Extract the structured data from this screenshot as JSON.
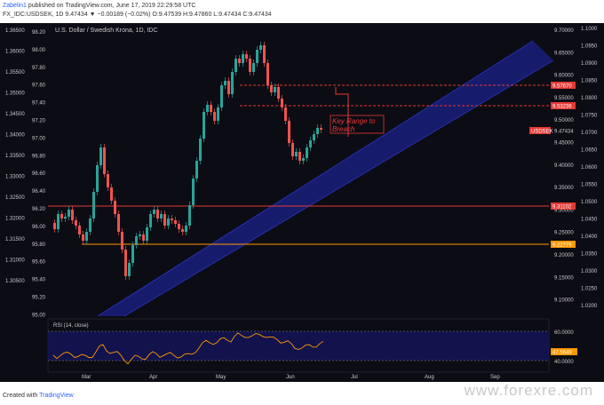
{
  "header": {
    "author": "Zabelin1",
    "published": "published on TradingView.com, June 17, 2019 22:29:58 UTC",
    "symbol_line": "FX_IDC:USDSEK, 1D 9.47434 ▼ −0.00189 (−0.02%) O:9.47539 H:9.47860 L:9.47434 C:9.47434"
  },
  "chart": {
    "title": "U.S. Dollar / Swedish Krona, 1D, IDC",
    "ticker_tag": "USDSEK",
    "price_tag": "9.47434",
    "annotation": "Key Range to\nBreach",
    "left_axis": [
      "1.36500",
      "1.36000",
      "1.35500",
      "1.35000",
      "1.34500",
      "1.34000",
      "1.33500",
      "1.33000",
      "1.32500",
      "1.32000",
      "1.31500",
      "1.31000",
      "1.30500"
    ],
    "mid_axis": [
      "98.20",
      "98.00",
      "97.80",
      "97.60",
      "97.40",
      "97.20",
      "97.00",
      "96.80",
      "96.60",
      "96.40",
      "96.20",
      "96.00",
      "95.80",
      "95.60",
      "95.40",
      "95.20",
      "95.00"
    ],
    "right_axis1": [
      "9.70000",
      "9.65000",
      "9.60000",
      "9.55000",
      "9.50000",
      "9.45000",
      "9.40000",
      "9.35000",
      "9.30000",
      "9.25000",
      "9.20000",
      "9.15000",
      "9.10000"
    ],
    "right_axis2": [
      "1.1000",
      "1.0950",
      "1.0900",
      "1.0850",
      "1.0800",
      "1.0750",
      "1.0700",
      "1.0650",
      "1.0600",
      "1.0550",
      "1.0500",
      "1.0450",
      "1.0400",
      "1.0350",
      "1.0300",
      "1.0250",
      "1.0200"
    ],
    "levels": [
      {
        "label": "9.57670",
        "color": "#e53935",
        "style": "dashed"
      },
      {
        "label": "9.53236",
        "color": "#e53935",
        "style": "dashed"
      },
      {
        "label": "9.31102",
        "color": "#e53935",
        "style": "solid"
      },
      {
        "label": "9.22779",
        "color": "#ff9800",
        "style": "solid"
      }
    ],
    "rsi": {
      "label": "RSI (14, close)",
      "value": "47.5649",
      "axis": [
        "60.0000",
        "40.0000"
      ]
    },
    "x_axis": [
      "Mar",
      "Apr",
      "May",
      "Jun",
      "Jul",
      "Aug",
      "Sep"
    ],
    "colors": {
      "up": "#26a69a",
      "down": "#ef5350",
      "channel": "#1a2a9e",
      "rsi_line": "#ff9800"
    }
  },
  "footer": {
    "created_with": "Created with",
    "brand": "TradingView"
  },
  "watermark": "www.forexre.com"
}
